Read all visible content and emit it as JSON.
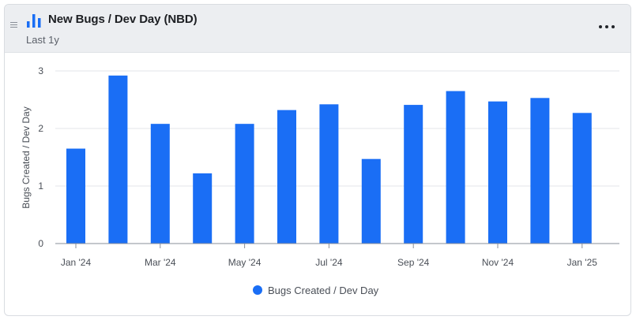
{
  "header": {
    "title": "New Bugs / Dev Day (NBD)",
    "subtitle": "Last 1y",
    "chart_icon": "bar-chart-icon",
    "drag_icon": "drag-handle-icon",
    "menu_icon": "more-horizontal-icon"
  },
  "colors": {
    "bar": "#1a6ef5",
    "grid": "#e3e5e8",
    "axis": "#8a8f98"
  },
  "chart_data": {
    "type": "bar",
    "categories": [
      "Jan '24",
      "Feb '24",
      "Mar '24",
      "Apr '24",
      "May '24",
      "Jun '24",
      "Jul '24",
      "Aug '24",
      "Sep '24",
      "Oct '24",
      "Nov '24",
      "Dec '24",
      "Jan '25"
    ],
    "x_tick_labels": [
      "Jan '24",
      "",
      "Mar '24",
      "",
      "May '24",
      "",
      "Jul '24",
      "",
      "Sep '24",
      "",
      "Nov '24",
      "",
      "Jan '25"
    ],
    "series": [
      {
        "name": "Bugs Created / Dev Day",
        "values": [
          1.65,
          2.92,
          2.08,
          1.22,
          2.08,
          2.32,
          2.42,
          1.47,
          2.41,
          2.65,
          2.47,
          2.53,
          2.27
        ]
      }
    ],
    "y_ticks": [
      "0",
      "1",
      "2",
      "3"
    ],
    "ylim": [
      0,
      3
    ],
    "ylabel": "Bugs Created / Dev Day",
    "xlabel": "",
    "grid": true,
    "legend_position": "bottom-center"
  }
}
